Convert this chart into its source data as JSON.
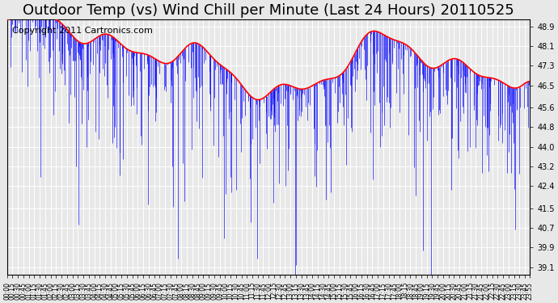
{
  "title": "Outdoor Temp (vs) Wind Chill per Minute (Last 24 Hours) 20110525",
  "copyright": "Copyright 2011 Cartronics.com",
  "ylabel_right": "",
  "yticks": [
    39.1,
    39.9,
    40.7,
    41.5,
    42.4,
    43.2,
    44.0,
    44.8,
    45.6,
    46.5,
    47.3,
    48.1,
    48.9
  ],
  "ymin": 38.8,
  "ymax": 49.2,
  "bg_color": "#e8e8e8",
  "plot_bg_color": "#e8e8e8",
  "grid_color": "#ffffff",
  "title_fontsize": 13,
  "copyright_fontsize": 8,
  "temp_color": "red",
  "wind_color": "blue"
}
